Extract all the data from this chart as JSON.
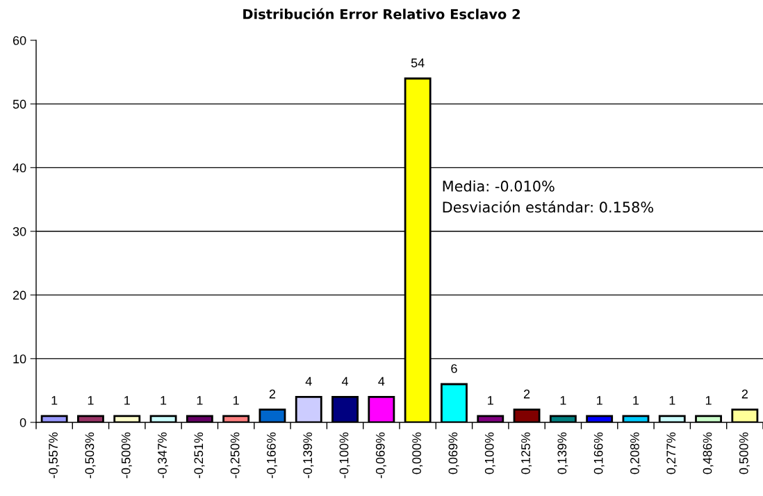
{
  "chart_data": {
    "type": "bar",
    "title": "Distribución Error Relativo Esclavo 2",
    "categories": [
      "-0,557%",
      "-0,503%",
      "-0,500%",
      "-0,347%",
      "-0,251%",
      "-0,250%",
      "-0,166%",
      "-0,139%",
      "-0,100%",
      "-0,069%",
      "0,000%",
      "0,069%",
      "0,100%",
      "0,125%",
      "0,139%",
      "0,166%",
      "0,208%",
      "0,277%",
      "0,486%",
      "0,500%"
    ],
    "values": [
      1,
      1,
      1,
      1,
      1,
      1,
      2,
      4,
      4,
      4,
      54,
      6,
      1,
      2,
      1,
      1,
      1,
      1,
      1,
      2
    ],
    "colors": [
      "#9999ff",
      "#993366",
      "#ffffcc",
      "#ccffff",
      "#660066",
      "#ff8080",
      "#0066cc",
      "#ccccff",
      "#000080",
      "#ff00ff",
      "#ffff00",
      "#00ffff",
      "#800080",
      "#800000",
      "#008080",
      "#0000ff",
      "#00ccff",
      "#ccffff",
      "#ccffcc",
      "#ffff99"
    ],
    "ylim": [
      0,
      60
    ],
    "yticks": [
      0,
      10,
      20,
      30,
      40,
      50,
      60
    ],
    "grid": "y",
    "data_labels": true,
    "annotations": [
      "Media: -0.010%",
      "Desviación estándar: 0.158%"
    ]
  }
}
